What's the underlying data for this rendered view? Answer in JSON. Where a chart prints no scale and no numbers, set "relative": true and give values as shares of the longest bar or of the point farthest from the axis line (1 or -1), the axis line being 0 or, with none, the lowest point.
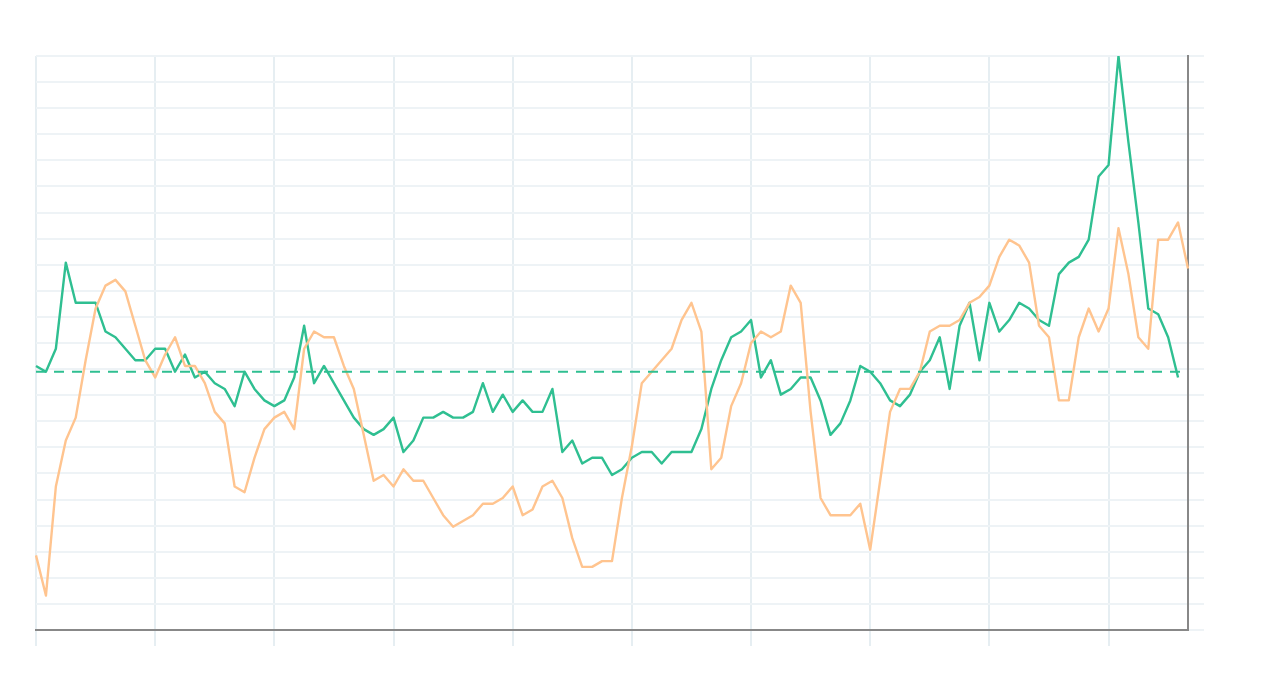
{
  "chart_data": {
    "type": "line",
    "relative": true,
    "grid": true,
    "legend": false,
    "marker": "none",
    "line_style": "solid",
    "categories": [
      null,
      null,
      null,
      null,
      null,
      null,
      null,
      null,
      null,
      null,
      null,
      null,
      null,
      null,
      null,
      null,
      null,
      null,
      null,
      null,
      null,
      null,
      null,
      null,
      null,
      null,
      null,
      null,
      null,
      null,
      null,
      null,
      null,
      null,
      null,
      null,
      null,
      null,
      null,
      null,
      null,
      null,
      null,
      null,
      null,
      null,
      null,
      null,
      null,
      null,
      null,
      null,
      null,
      null,
      null,
      null,
      null,
      null,
      null,
      null,
      null,
      null,
      null,
      null,
      null,
      null,
      null,
      null,
      null,
      null,
      null,
      null,
      null,
      null,
      null,
      null,
      null,
      null,
      null,
      null,
      null,
      null,
      null,
      null,
      null,
      null,
      null,
      null,
      null,
      null,
      null,
      null,
      null,
      null,
      null,
      null,
      null,
      null,
      null,
      null,
      null,
      null,
      null,
      null,
      null,
      null,
      null,
      null,
      null,
      null,
      null,
      null,
      null,
      null,
      null,
      null,
      null
    ],
    "series": [
      {
        "color": "#ffc48f",
        "values": [
          0.13,
          0.06,
          0.25,
          0.33,
          0.37,
          0.47,
          0.56,
          0.6,
          0.61,
          0.59,
          0.53,
          0.47,
          0.44,
          0.48,
          0.51,
          0.46,
          0.46,
          0.43,
          0.38,
          0.36,
          0.25,
          0.24,
          0.3,
          0.35,
          0.37,
          0.38,
          0.35,
          0.49,
          0.52,
          0.51,
          0.51,
          0.46,
          0.42,
          0.34,
          0.26,
          0.27,
          0.25,
          0.28,
          0.26,
          0.26,
          0.23,
          0.2,
          0.18,
          0.19,
          0.2,
          0.22,
          0.22,
          0.23,
          0.25,
          0.2,
          0.21,
          0.25,
          0.26,
          0.23,
          0.16,
          0.11,
          0.11,
          0.12,
          0.12,
          0.23,
          0.32,
          0.43,
          0.45,
          0.47,
          0.49,
          0.54,
          0.57,
          0.52,
          0.28,
          0.3,
          0.39,
          0.43,
          0.5,
          0.52,
          0.51,
          0.52,
          0.6,
          0.57,
          0.38,
          0.23,
          0.2,
          0.2,
          0.2,
          0.22,
          0.14,
          0.26,
          0.38,
          0.42,
          0.42,
          0.45,
          0.52,
          0.53,
          0.53,
          0.54,
          0.57,
          0.58,
          0.6,
          0.65,
          0.68,
          0.67,
          0.64,
          0.53,
          0.51,
          0.4,
          0.4,
          0.51,
          0.56,
          0.52,
          0.56,
          0.7,
          0.62,
          0.51,
          0.49,
          0.68,
          0.68,
          0.71,
          0.63
        ]
      },
      {
        "color": "#2fbf91",
        "values": [
          0.46,
          0.45,
          0.49,
          0.64,
          0.57,
          0.57,
          0.57,
          0.52,
          0.51,
          0.49,
          0.47,
          0.47,
          0.49,
          0.49,
          0.45,
          0.48,
          0.44,
          0.45,
          0.43,
          0.42,
          0.39,
          0.45,
          0.42,
          0.4,
          0.39,
          0.4,
          0.44,
          0.53,
          0.43,
          0.46,
          0.43,
          0.4,
          0.37,
          0.35,
          0.34,
          0.35,
          0.37,
          0.31,
          0.33,
          0.37,
          0.37,
          0.38,
          0.37,
          0.37,
          0.38,
          0.43,
          0.38,
          0.41,
          0.38,
          0.4,
          0.38,
          0.38,
          0.42,
          0.31,
          0.33,
          0.29,
          0.3,
          0.3,
          0.27,
          0.28,
          0.3,
          0.31,
          0.31,
          0.29,
          0.31,
          0.31,
          0.31,
          0.35,
          0.42,
          0.47,
          0.51,
          0.52,
          0.54,
          0.44,
          0.47,
          0.41,
          0.42,
          0.44,
          0.44,
          0.4,
          0.34,
          0.36,
          0.4,
          0.46,
          0.45,
          0.43,
          0.4,
          0.39,
          0.41,
          0.45,
          0.47,
          0.51,
          0.42,
          0.53,
          0.57,
          0.47,
          0.57,
          0.52,
          0.54,
          0.57,
          0.56,
          0.54,
          0.53,
          0.62,
          0.64,
          0.65,
          0.68,
          0.79,
          0.81,
          1,
          0.85,
          0.71,
          0.56,
          0.55,
          0.51,
          0.44,
          null
        ]
      }
    ],
    "ref_lines": [
      {
        "axis": "y",
        "value": 0.45,
        "color": "#2fbf91",
        "line_style": "dashed"
      }
    ]
  }
}
